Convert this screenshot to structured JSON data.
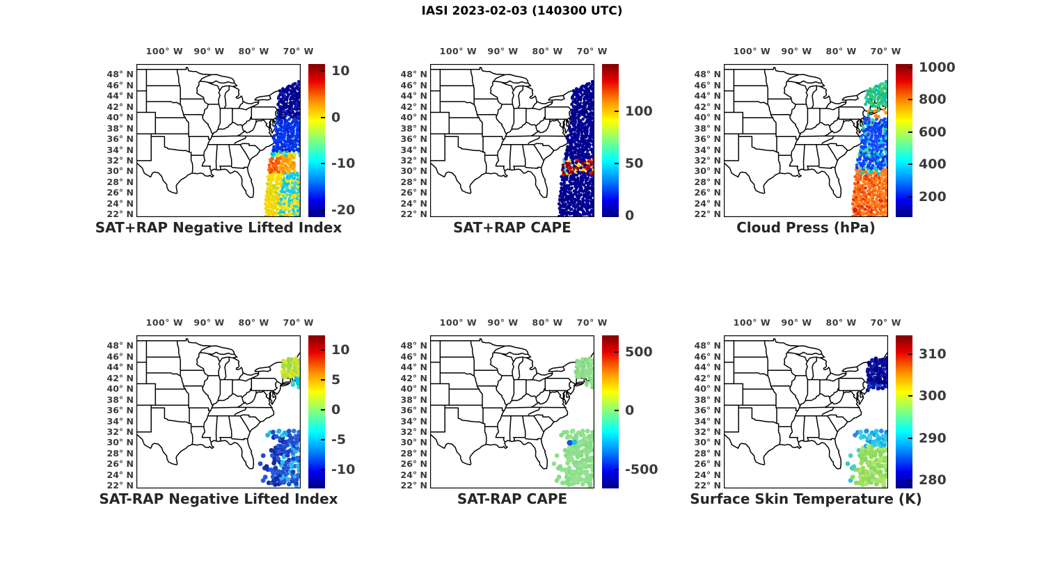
{
  "figure_title": "IASI 2023-02-03 (140300 UTC)",
  "chart_data": {
    "type": "scatter",
    "description": "Six geographic scatter-map panels of IASI satellite sounding retrievals over the eastern United States and western Atlantic; a diagonal polar-orbit swath of colored footprints is plotted over a US state-outline map, each panel with its own jet colorbar.",
    "axes": {
      "lon_tick_labels": [
        "100° W",
        "90° W",
        "80° W",
        "70° W"
      ],
      "lon_tick_values": [
        -100,
        -90,
        -80,
        -70
      ],
      "lat_tick_labels": [
        "48° N",
        "46° N",
        "44° N",
        "42° N",
        "40° N",
        "38° N",
        "36° N",
        "34° N",
        "32° N",
        "30° N",
        "28° N",
        "26° N",
        "24° N",
        "22° N"
      ],
      "lat_tick_values": [
        48,
        46,
        44,
        42,
        40,
        38,
        36,
        34,
        32,
        30,
        28,
        26,
        24,
        22
      ],
      "lon_range": [
        -106.3,
        -69.5
      ],
      "lat_range": [
        21.5,
        50.0
      ],
      "grid": false
    },
    "swath": {
      "lats": [
        47,
        44,
        41,
        38,
        35,
        32,
        29,
        26,
        23,
        21.5
      ],
      "west_lon": [
        -73.9,
        -74.15,
        -74.5,
        -75.0,
        -75.6,
        -76.2,
        -76.7,
        -77.0,
        -77.3,
        -77.4
      ],
      "width_lon": 7.6,
      "top_cut": {
        "from_lon": -74.3,
        "from_lat": 45.2,
        "slope": 0.354
      }
    },
    "panels": [
      {
        "id": "satplusrap-nli",
        "row": 0,
        "col": 0,
        "title": "SAT+RAP Negative Lifted Index",
        "colorbar": {
          "ticks": [
            "10",
            "0",
            "-10",
            "-20"
          ],
          "tick_values": [
            10,
            0,
            -10,
            -20
          ],
          "vmax": 11.5,
          "vmin": -21.5
        },
        "clusters": [
          {
            "kind": "swath",
            "seed": 11,
            "lat": [
              21.6,
              46.9
            ],
            "step_lat": 0.42,
            "step_lon": 0.58,
            "r": 2.4,
            "density": 0.96,
            "bands": [
              {
                "lat": [
                  40.0,
                  47.0
                ],
                "approx_value": "-16 to -21",
                "colors": [
                  "#000088",
                  "#000094",
                  "#000890",
                  "#101cb8",
                  "#00009c"
                ]
              },
              {
                "lat": [
                  33.7,
                  40.0
                ],
                "approx_value": "-11 to -14",
                "colors": [
                  "#0030e0",
                  "#0040ff",
                  "#0838e8",
                  "#0028d0"
                ]
              },
              {
                "lat": [
                  32.8,
                  33.7
                ],
                "approx_value": "-3 to -9 transition",
                "colors": [
                  "#00a8ff",
                  "#00d0e0",
                  "#38dcb0",
                  "#90e060",
                  "#d8e830",
                  "#ffc800"
                ]
              },
              {
                "lat": [
                  29.8,
                  32.8
                ],
                "approx_value": "0 to +3",
                "mode": "lr",
                "split": 0.28,
                "left": [
                  "#ff5800",
                  "#f04800",
                  "#ff6c00"
                ],
                "right": [
                  "#ff9800",
                  "#ffa400",
                  "#ff8c00",
                  "#ffb000",
                  "#ffc400"
                ],
                "right_trim": 1.3
              },
              {
                "lat": [
                  28.8,
                  29.8
                ],
                "approx_value": "-1 west to -9 east",
                "mode": "lr",
                "split": 0.45,
                "left": [
                  "#ffd800",
                  "#ffe000"
                ],
                "right": [
                  "#18ccec",
                  "#00c0f0",
                  "#40d4d0"
                ],
                "right_trim": 0.6
              },
              {
                "lat": [
                  26.0,
                  28.8
                ],
                "approx_value": "-1 west to -8 east",
                "mode": "lr",
                "split": 0.42,
                "left": [
                  "#ffd800",
                  "#eede00",
                  "#c8d818"
                ],
                "right": [
                  "#28d0dc",
                  "#00c8ec",
                  "#ffe000",
                  "#58d8b0"
                ]
              },
              {
                "lat": [
                  21.6,
                  26.0
                ],
                "approx_value": "-1 to -7 mixed",
                "mode": "lr",
                "split": 0.36,
                "left": [
                  "#ffd400",
                  "#e8dc00"
                ],
                "right": [
                  "#38d4d0",
                  "#ffe400",
                  "#80dc80",
                  "#00ccdc",
                  "#ffd800"
                ]
              }
            ]
          }
        ]
      },
      {
        "id": "satplusrap-cape",
        "row": 0,
        "col": 1,
        "title": "SAT+RAP CAPE",
        "colorbar": {
          "ticks": [
            "100",
            "50",
            "0"
          ],
          "tick_values": [
            100,
            50,
            0
          ],
          "vmax": 145,
          "vmin": -1
        },
        "clusters": [
          {
            "kind": "swath",
            "seed": 11,
            "lat": [
              21.6,
              46.9
            ],
            "step_lat": 0.42,
            "step_lon": 0.58,
            "r": 2.4,
            "density": 0.96,
            "bands": [
              {
                "lat": [
                  32.3,
                  47.0
                ],
                "approx_value": "0 to 5",
                "colors": [
                  "#000088",
                  "#000090",
                  "#000098"
                ]
              },
              {
                "lat": [
                  29.5,
                  32.3
                ],
                "approx_value": "patchy 80 to 140",
                "colors": [
                  "#8f0000",
                  "#b00000",
                  "#d81000",
                  "#ff2000",
                  "#ffd800",
                  "#000090",
                  "#000090",
                  "#000090",
                  "#30c8e8",
                  "#900000"
                ]
              },
              {
                "lat": [
                  21.6,
                  29.5
                ],
                "approx_value": "0 to 5",
                "colors": [
                  "#000088",
                  "#000090",
                  "#000098"
                ]
              }
            ]
          }
        ]
      },
      {
        "id": "cloud-press",
        "row": 0,
        "col": 2,
        "title": "Cloud Press (hPa)",
        "colorbar": {
          "ticks": [
            "1000",
            "800",
            "600",
            "400",
            "200"
          ],
          "tick_values": [
            1000,
            800,
            600,
            400,
            200
          ],
          "vmax": 1020,
          "vmin": 75
        },
        "clusters": [
          {
            "kind": "swath",
            "seed": 11,
            "lat": [
              21.6,
              46.9
            ],
            "step_lat": 0.42,
            "step_lon": 0.58,
            "r": 2.4,
            "density": 0.96,
            "bands": [
              {
                "lat": [
                  42.1,
                  47.0
                ],
                "approx_value": "450 to 620",
                "colors": [
                  "#18c088",
                  "#2cc878",
                  "#48d060",
                  "#30b898",
                  "#00c4b0",
                  "#38d0a0"
                ]
              },
              {
                "lat": [
                  40.0,
                  42.1
                ],
                "approx_value": "sparse 500 to 800",
                "drop": 0.78,
                "colors": [
                  "#2cc878",
                  "#00c0c0",
                  "#ff9000"
                ]
              },
              {
                "lat": [
                  30.4,
                  40.0
                ],
                "approx_value": "200 to 300",
                "colors": [
                  "#1048ff",
                  "#1048ff",
                  "#1048ff",
                  "#0a40f0",
                  "#2058ff",
                  "#0838e0",
                  "#00c8e8",
                  "#40d0a0"
                ]
              },
              {
                "lat": [
                  29.6,
                  30.4
                ],
                "approx_value": "mixed 400 to 850",
                "colors": [
                  "#ff7818",
                  "#ff8c20",
                  "#2cc878",
                  "#00c8e8",
                  "#ff7818",
                  "#ff7818"
                ]
              },
              {
                "lat": [
                  21.6,
                  29.6
                ],
                "approx_value": "780 to 900",
                "colors": [
                  "#ff7414",
                  "#ff680c",
                  "#ff801c",
                  "#f85c0a",
                  "#ff8c28",
                  "#e83010"
                ]
              }
            ]
          }
        ],
        "extra_points": [
          {
            "lon": -72.2,
            "lat": 40.3,
            "approx_value": "~800",
            "color": "#ff8820",
            "r": 3.0
          },
          {
            "lon": -76.9,
            "lat": 22.8,
            "approx_value": "~900",
            "color": "#e02010",
            "r": 3.6
          }
        ]
      },
      {
        "id": "satminusrap-nli",
        "row": 1,
        "col": 0,
        "title": "SAT-RAP Negative Lifted Index",
        "colorbar": {
          "ticks": [
            "10",
            "5",
            "0",
            "-5",
            "-10"
          ],
          "tick_values": [
            10,
            5,
            0,
            -5,
            -10
          ],
          "vmax": 12.4,
          "vmin": -13.2
        },
        "clusters": [
          {
            "kind": "box",
            "seed": 33,
            "lon": [
              -73.4,
              -68.9
            ],
            "lat": [
              42.2,
              45.8
            ],
            "step_lat": 0.5,
            "step_lon": 0.6,
            "r": 3.0,
            "density": 0.88,
            "bands": [
              {
                "lat": [
                  42.2,
                  45.8
                ],
                "approx_value": "+2 to +5",
                "colors": [
                  "#c8e428",
                  "#d8e020",
                  "#b0e43c",
                  "#e8e818",
                  "#98dc50",
                  "#a0d848"
                ]
              }
            ]
          },
          {
            "kind": "box",
            "seed": 44,
            "lon": [
              -71.2,
              -68.9
            ],
            "lat": [
              40.2,
              42.2
            ],
            "step_lat": 0.55,
            "step_lon": 0.6,
            "r": 3.0,
            "density": 0.55,
            "bands": [
              {
                "lat": [
                  40.2,
                  42.2
                ],
                "approx_value": "-4 to -6",
                "colors": [
                  "#18ccd8",
                  "#00c4e4",
                  "#40d8d0"
                ]
              }
            ]
          },
          {
            "kind": "swath",
            "seed": 22,
            "lat": [
              21.8,
              32.4
            ],
            "step_lat": 0.6,
            "step_lon": 0.7,
            "r": 3.4,
            "density": 0.8,
            "left_sparse": true,
            "west_extend": 1.3,
            "bands": [
              {
                "lat": [
                  31.3,
                  32.4
                ],
                "approx_value": "-4 to -7",
                "colors": [
                  "#20b0e4",
                  "#2878dc",
                  "#1c50c8",
                  "#30c4e8"
                ]
              },
              {
                "lat": [
                  21.8,
                  31.3
                ],
                "approx_value": "-7 to -11",
                "mode": "lr",
                "split": 0.5,
                "left": [
                  "#1838b8",
                  "#2048d0",
                  "#102ca0",
                  "#2858d8",
                  "#1030b0"
                ],
                "right": [
                  "#2858d8",
                  "#3068e0",
                  "#1840c4",
                  "#28c0e8",
                  "#2050d0",
                  "#38b0e8"
                ]
              }
            ]
          }
        ]
      },
      {
        "id": "satminusrap-cape",
        "row": 1,
        "col": 1,
        "title": "SAT-RAP CAPE",
        "colorbar": {
          "ticks": [
            "500",
            "0",
            "-500"
          ],
          "tick_values": [
            500,
            0,
            -500
          ],
          "vmax": 640,
          "vmin": -660
        },
        "clusters": [
          {
            "kind": "box",
            "seed": 33,
            "lon": [
              -73.4,
              -68.9
            ],
            "lat": [
              42.2,
              45.8
            ],
            "step_lat": 0.5,
            "step_lon": 0.6,
            "r": 3.0,
            "density": 0.88,
            "bands": [
              {
                "lat": [
                  42.2,
                  45.8
                ],
                "approx_value": "~0",
                "colors": [
                  "#8ee08c",
                  "#98e896",
                  "#84da82",
                  "#90e090"
                ]
              }
            ]
          },
          {
            "kind": "box",
            "seed": 44,
            "lon": [
              -71.2,
              -68.9
            ],
            "lat": [
              40.2,
              42.2
            ],
            "step_lat": 0.55,
            "step_lon": 0.6,
            "r": 3.0,
            "density": 0.55,
            "bands": [
              {
                "lat": [
                  40.2,
                  42.2
                ],
                "approx_value": "~0",
                "colors": [
                  "#8ee08c",
                  "#98e896",
                  "#84da82"
                ]
              }
            ]
          },
          {
            "kind": "swath",
            "seed": 22,
            "lat": [
              21.8,
              32.4
            ],
            "step_lat": 0.6,
            "step_lon": 0.7,
            "r": 3.4,
            "density": 0.8,
            "left_sparse": true,
            "west_extend": 1.3,
            "bands": [
              {
                "lat": [
                  21.8,
                  32.4
                ],
                "approx_value": "~0",
                "colors": [
                  "#8ee08c",
                  "#94e492",
                  "#88dc86",
                  "#90e090"
                ]
              }
            ]
          }
        ],
        "extra_points": [
          {
            "lon": -75.0,
            "lat": 30.0,
            "approx_value": "~ -450",
            "color": "#1050e8",
            "r": 4.2
          },
          {
            "lon": -73.95,
            "lat": 30.1,
            "approx_value": "~ -180",
            "color": "#28b8ec",
            "r": 3.8
          }
        ]
      },
      {
        "id": "surface-skin-temp",
        "row": 1,
        "col": 2,
        "title": "Surface Skin Temperature (K)",
        "colorbar": {
          "ticks": [
            "310",
            "300",
            "290",
            "280"
          ],
          "tick_values": [
            310,
            300,
            290,
            280
          ],
          "vmax": 314.5,
          "vmin": 278
        },
        "clusters": [
          {
            "kind": "box",
            "seed": 35,
            "lon": [
              -73.8,
              -68.9
            ],
            "lat": [
              39.8,
              45.8
            ],
            "step_lat": 0.5,
            "step_lon": 0.6,
            "r": 3.0,
            "density": 0.9,
            "bands": [
              {
                "lat": [
                  41.2,
                  45.8
                ],
                "approx_value": "279 to 282",
                "colors": [
                  "#000090",
                  "#050898",
                  "#101095",
                  "#1a22ac",
                  "#00008a"
                ]
              },
              {
                "lat": [
                  39.8,
                  41.2
                ],
                "approx_value": "281 to 284",
                "colors": [
                  "#1a30c0",
                  "#2845d5",
                  "#0a18a0",
                  "#101095"
                ]
              }
            ]
          },
          {
            "kind": "swath",
            "seed": 22,
            "lat": [
              21.8,
              32.4
            ],
            "step_lat": 0.6,
            "step_lon": 0.7,
            "r": 3.4,
            "density": 0.8,
            "left_sparse": true,
            "west_extend": 1.3,
            "bands": [
              {
                "lat": [
                  29.4,
                  32.4
                ],
                "approx_value": "287 to 291",
                "colors": [
                  "#28c4ec",
                  "#30cce8",
                  "#18b0ec",
                  "#48d4dc",
                  "#2888e0"
                ]
              },
              {
                "lat": [
                  21.8,
                  29.4
                ],
                "approx_value": "293 to 297",
                "mode": "lr",
                "split": 0.3,
                "left": [
                  "#48d0c0",
                  "#88dc60",
                  "#30c8d0"
                ],
                "right": [
                  "#a0e060",
                  "#94de54",
                  "#b0e66c",
                  "#88d868"
                ]
              }
            ]
          }
        ]
      }
    ]
  }
}
